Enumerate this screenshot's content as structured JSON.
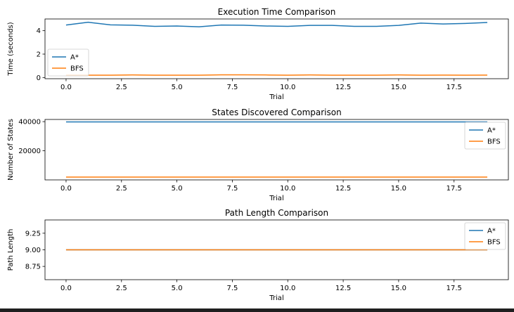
{
  "chart_data": [
    {
      "type": "line",
      "title": "Execution Time Comparison",
      "xlabel": "Trial",
      "ylabel": "Time (seconds)",
      "xlim": [
        -0.95,
        19.95
      ],
      "ylim": [
        -0.1,
        5.0
      ],
      "xticks": [
        "0.0",
        "2.5",
        "5.0",
        "7.5",
        "10.0",
        "12.5",
        "15.0",
        "17.5"
      ],
      "xtick_values": [
        0,
        2.5,
        5,
        7.5,
        10,
        12.5,
        15,
        17.5
      ],
      "yticks": [
        "0",
        "2",
        "4"
      ],
      "ytick_values": [
        0,
        2,
        4
      ],
      "legend": "lower-left",
      "grid": false,
      "x": [
        0,
        1,
        2,
        3,
        4,
        5,
        6,
        7,
        8,
        9,
        10,
        11,
        12,
        13,
        14,
        15,
        16,
        17,
        18,
        19
      ],
      "series": [
        {
          "name": "A*",
          "color": "#1f77b4",
          "values": [
            4.48,
            4.72,
            4.5,
            4.47,
            4.37,
            4.4,
            4.33,
            4.48,
            4.47,
            4.4,
            4.37,
            4.45,
            4.45,
            4.37,
            4.37,
            4.45,
            4.65,
            4.57,
            4.62,
            4.7
          ]
        },
        {
          "name": "BFS",
          "color": "#ff7f0e",
          "values": [
            0.2,
            0.2,
            0.2,
            0.22,
            0.2,
            0.2,
            0.2,
            0.23,
            0.23,
            0.22,
            0.2,
            0.22,
            0.2,
            0.2,
            0.2,
            0.22,
            0.2,
            0.21,
            0.2,
            0.21
          ]
        }
      ]
    },
    {
      "type": "line",
      "title": "States Discovered Comparison",
      "xlabel": "Trial",
      "ylabel": "Number of States",
      "xlim": [
        -0.95,
        19.95
      ],
      "ylim": [
        0,
        41500
      ],
      "xticks": [
        "0.0",
        "2.5",
        "5.0",
        "7.5",
        "10.0",
        "12.5",
        "15.0",
        "17.5"
      ],
      "xtick_values": [
        0,
        2.5,
        5,
        7.5,
        10,
        12.5,
        15,
        17.5
      ],
      "yticks": [
        "20000",
        "40000"
      ],
      "ytick_values": [
        20000,
        40000
      ],
      "legend": "upper-right",
      "grid": false,
      "x": [
        0,
        1,
        2,
        3,
        4,
        5,
        6,
        7,
        8,
        9,
        10,
        11,
        12,
        13,
        14,
        15,
        16,
        17,
        18,
        19
      ],
      "series": [
        {
          "name": "A*",
          "color": "#1f77b4",
          "values": [
            39800,
            39800,
            39800,
            39800,
            39800,
            39800,
            39800,
            39800,
            39800,
            39800,
            39800,
            39800,
            39800,
            39800,
            39800,
            39800,
            39800,
            39800,
            39800,
            39800
          ]
        },
        {
          "name": "BFS",
          "color": "#ff7f0e",
          "values": [
            1900,
            1900,
            1900,
            1900,
            1900,
            1900,
            1900,
            1900,
            1900,
            1900,
            1900,
            1900,
            1900,
            1900,
            1900,
            1900,
            1900,
            1900,
            1900,
            1900
          ]
        }
      ]
    },
    {
      "type": "line",
      "title": "Path Length Comparison",
      "xlabel": "Trial",
      "ylabel": "Path Length",
      "xlim": [
        -0.95,
        19.95
      ],
      "ylim": [
        8.55,
        9.45
      ],
      "xticks": [
        "0.0",
        "2.5",
        "5.0",
        "7.5",
        "10.0",
        "12.5",
        "15.0",
        "17.5"
      ],
      "xtick_values": [
        0,
        2.5,
        5,
        7.5,
        10,
        12.5,
        15,
        17.5
      ],
      "yticks": [
        "8.75",
        "9.00",
        "9.25"
      ],
      "ytick_values": [
        8.75,
        9.0,
        9.25
      ],
      "legend": "upper-right",
      "grid": false,
      "x": [
        0,
        1,
        2,
        3,
        4,
        5,
        6,
        7,
        8,
        9,
        10,
        11,
        12,
        13,
        14,
        15,
        16,
        17,
        18,
        19
      ],
      "series": [
        {
          "name": "A*",
          "color": "#1f77b4",
          "values": [
            9,
            9,
            9,
            9,
            9,
            9,
            9,
            9,
            9,
            9,
            9,
            9,
            9,
            9,
            9,
            9,
            9,
            9,
            9,
            9
          ]
        },
        {
          "name": "BFS",
          "color": "#ff7f0e",
          "values": [
            9,
            9,
            9,
            9,
            9,
            9,
            9,
            9,
            9,
            9,
            9,
            9,
            9,
            9,
            9,
            9,
            9,
            9,
            9,
            9
          ]
        }
      ]
    }
  ]
}
